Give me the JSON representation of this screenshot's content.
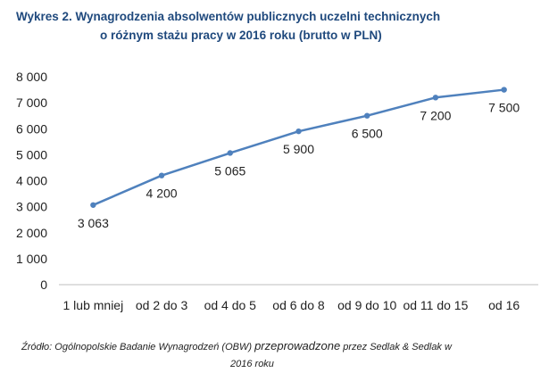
{
  "chart_data": {
    "type": "line",
    "title_line1": "Wykres 2. Wynagrodzenia absolwentów publicznych uczelni technicznych",
    "title_line2": "o różnym stażu pracy w 2016 roku (brutto w PLN)",
    "xlabel": "",
    "ylabel": "",
    "categories": [
      "1 lub mniej",
      "od 2 do 3",
      "od 4 do 5",
      "od 6 do 8",
      "od 9 do 10",
      "od 11 do 15",
      "od 16"
    ],
    "values": [
      3063,
      4200,
      5065,
      5900,
      6500,
      7200,
      7500
    ],
    "value_labels": [
      "3 063",
      "4 200",
      "5 065",
      "5 900",
      "6 500",
      "7 200",
      "7 500"
    ],
    "y_ticks": [
      0,
      1000,
      2000,
      3000,
      4000,
      5000,
      6000,
      7000,
      8000
    ],
    "y_tick_labels": [
      "0",
      "1 000",
      "2 000",
      "3 000",
      "4 000",
      "5 000",
      "6 000",
      "7 000",
      "8 000"
    ],
    "ylim": [
      0,
      8000
    ],
    "grid": false,
    "legend": "none",
    "line_color": "#4f81bd"
  },
  "source": {
    "part1": "Źródło: Ogólnopolskie Badanie Wynagrodzeń (OBW) ",
    "part2": "przeprowadzone",
    "part3": " przez Sedlak & Sedlak w",
    "line2": "2016 roku"
  },
  "colors": {
    "title": "#1f497d",
    "axis": "#bfbfbf",
    "text": "#222222"
  }
}
